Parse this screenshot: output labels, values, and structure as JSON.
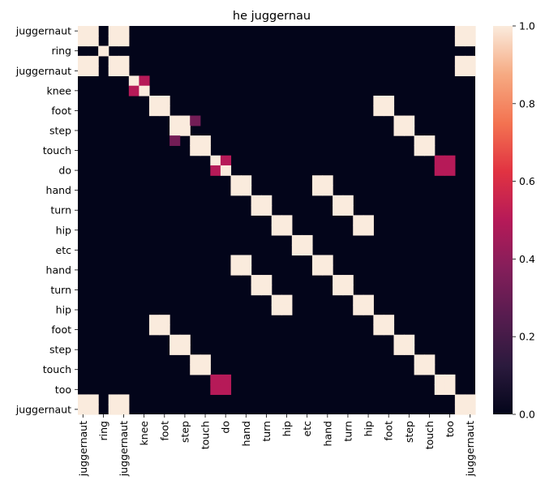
{
  "chart_data": {
    "type": "heatmap",
    "title": "he juggernau",
    "tokens": [
      "juggernaut",
      "juggernaut",
      "ring",
      "juggernaut",
      "juggernaut",
      "knee",
      "knee",
      "foot",
      "foot",
      "step",
      "step",
      "touch",
      "touch",
      "do",
      "do",
      "hand",
      "hand",
      "turn",
      "turn",
      "hip",
      "hip",
      "etc",
      "etc",
      "hand",
      "hand",
      "turn",
      "turn",
      "hip",
      "hip",
      "foot",
      "foot",
      "step",
      "step",
      "touch",
      "touch",
      "too",
      "too",
      "juggernaut",
      "juggernaut"
    ],
    "row_labels": [
      "juggernaut",
      "",
      "ring",
      "",
      "juggernaut",
      "",
      "knee",
      "",
      "foot",
      "",
      "step",
      "",
      "touch",
      "",
      "do",
      "",
      "hand",
      "",
      "turn",
      "",
      "hip",
      "",
      "etc",
      "",
      "hand",
      "",
      "turn",
      "",
      "hip",
      "",
      "foot",
      "",
      "step",
      "",
      "touch",
      "",
      "too",
      "",
      "juggernaut"
    ],
    "col_labels": [
      "juggernaut",
      "",
      "ring",
      "",
      "juggernaut",
      "",
      "knee",
      "",
      "foot",
      "",
      "step",
      "",
      "touch",
      "",
      "do",
      "",
      "hand",
      "",
      "turn",
      "",
      "hip",
      "",
      "etc",
      "",
      "hand",
      "",
      "turn",
      "",
      "hip",
      "",
      "foot",
      "",
      "step",
      "",
      "touch",
      "",
      "too",
      "",
      "juggernaut"
    ],
    "special_values": [
      {
        "row": 5,
        "col": 6,
        "value": 0.5
      },
      {
        "row": 6,
        "col": 5,
        "value": 0.5
      },
      {
        "row": 13,
        "col": 14,
        "value": 0.5
      },
      {
        "row": 14,
        "col": 13,
        "value": 0.5
      },
      {
        "row": 13,
        "col": 35,
        "value": 0.5
      },
      {
        "row": 35,
        "col": 13,
        "value": 0.5
      },
      {
        "row": 14,
        "col": 35,
        "value": 0.5
      },
      {
        "row": 35,
        "col": 14,
        "value": 0.5
      },
      {
        "row": 14,
        "col": 36,
        "value": 0.5
      },
      {
        "row": 36,
        "col": 14,
        "value": 0.5
      },
      {
        "row": 13,
        "col": 36,
        "value": 0.5
      },
      {
        "row": 36,
        "col": 13,
        "value": 0.5
      },
      {
        "row": 9,
        "col": 11,
        "value": 0.33
      },
      {
        "row": 11,
        "col": 9,
        "value": 0.33
      }
    ],
    "colorbar": {
      "min": 0.0,
      "max": 1.0,
      "ticks": [
        0.0,
        0.2,
        0.4,
        0.6,
        0.8,
        1.0
      ],
      "tick_labels": [
        "0.0",
        "0.2",
        "0.4",
        "0.6",
        "0.8",
        "1.0"
      ]
    },
    "colormap": "rocket",
    "grid": false,
    "legend": "colorbar-right"
  }
}
